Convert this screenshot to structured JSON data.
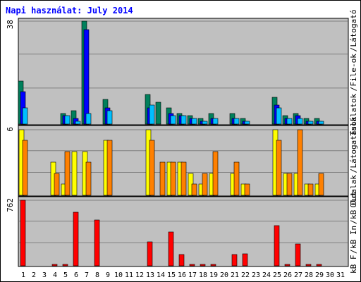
{
  "chart_data": {
    "type": "bar",
    "title": "Napi használat: July 2014",
    "x": [
      1,
      2,
      3,
      4,
      5,
      6,
      7,
      8,
      9,
      10,
      11,
      12,
      13,
      14,
      15,
      16,
      17,
      18,
      19,
      20,
      21,
      22,
      23,
      24,
      25,
      26,
      27,
      28,
      29,
      30,
      31
    ],
    "weekend_days": [
      5,
      6,
      12,
      13,
      19,
      20,
      26,
      27
    ],
    "panels": [
      {
        "name": "top",
        "ymax_label": "38",
        "ymax": 38,
        "grid": true,
        "legend": [
          {
            "text": "Találatok",
            "color": "#00805c"
          },
          {
            "text": "/",
            "color": "#0000ff"
          },
          {
            "text": "File-ok",
            "color": "#0000ff"
          },
          {
            "text": "/",
            "color": "#0000ff"
          },
          {
            "text": "Látogató",
            "color": "#00e0ff"
          }
        ],
        "series": [
          {
            "name": "Találatok",
            "color": "#00805c",
            "values": [
              16,
              0,
              0,
              0,
              4,
              5,
              38,
              0,
              9,
              0,
              0,
              0,
              11,
              8,
              6,
              4,
              3,
              2,
              4,
              0,
              4,
              2,
              0,
              0,
              10,
              3,
              4,
              2,
              2,
              0,
              0
            ]
          },
          {
            "name": "File-ok",
            "color": "#0000ff",
            "values": [
              12,
              0,
              0,
              0,
              3,
              2,
              35,
              0,
              6,
              0,
              0,
              0,
              6,
              0,
              4,
              3,
              2,
              1,
              2,
              0,
              2,
              1,
              0,
              0,
              7,
              2,
              3,
              1,
              1,
              0,
              0
            ]
          },
          {
            "name": "Látogató",
            "color": "#00bfff",
            "values": [
              6,
              0,
              0,
              0,
              3,
              1,
              4,
              0,
              5,
              0,
              0,
              0,
              7,
              0,
              3,
              3,
              2,
              1,
              2,
              0,
              2,
              1,
              0,
              0,
              6,
              2,
              2,
              1,
              1,
              0,
              0
            ]
          }
        ]
      },
      {
        "name": "middle",
        "ymax_label": "6",
        "ymax": 6,
        "grid": true,
        "legend": [
          {
            "text": "Oldalak",
            "color": "#ff8000"
          },
          {
            "text": "/",
            "color": "#0000ff"
          },
          {
            "text": "Látogatások",
            "color": "#ffff00"
          }
        ],
        "series": [
          {
            "name": "Látogatások",
            "color": "#ffff00",
            "values": [
              6,
              0,
              0,
              3,
              1,
              4,
              4,
              0,
              5,
              0,
              0,
              0,
              6,
              0,
              3,
              3,
              2,
              1,
              2,
              0,
              2,
              1,
              0,
              0,
              6,
              2,
              2,
              1,
              1,
              0,
              0
            ]
          },
          {
            "name": "Oldalak",
            "color": "#ff8000",
            "values": [
              5,
              0,
              0,
              2,
              4,
              0,
              3,
              0,
              5,
              0,
              0,
              0,
              5,
              3,
              3,
              3,
              1,
              2,
              4,
              0,
              3,
              1,
              0,
              0,
              5,
              2,
              6,
              1,
              2,
              0,
              0
            ]
          }
        ]
      },
      {
        "name": "bottom",
        "ymax_label": "762",
        "ymax": 762,
        "grid": true,
        "legend": [
          {
            "text": "kB F",
            "color": "#ff0000"
          },
          {
            "text": "/",
            "color": "#0000ff"
          },
          {
            "text": "kB In",
            "color": "#0000ff"
          },
          {
            "text": "/",
            "color": "#0000ff"
          },
          {
            "text": "kB Out",
            "color": "#00805c"
          }
        ],
        "series": [
          {
            "name": "kB F",
            "color": "#ff0000",
            "values": [
              762,
              0,
              0,
              10,
              10,
              620,
              0,
              530,
              0,
              0,
              0,
              0,
              280,
              0,
              390,
              130,
              10,
              10,
              10,
              0,
              130,
              140,
              0,
              0,
              470,
              10,
              250,
              10,
              10,
              0,
              0
            ]
          }
        ]
      }
    ],
    "legend_placement": "right",
    "grid": true
  }
}
